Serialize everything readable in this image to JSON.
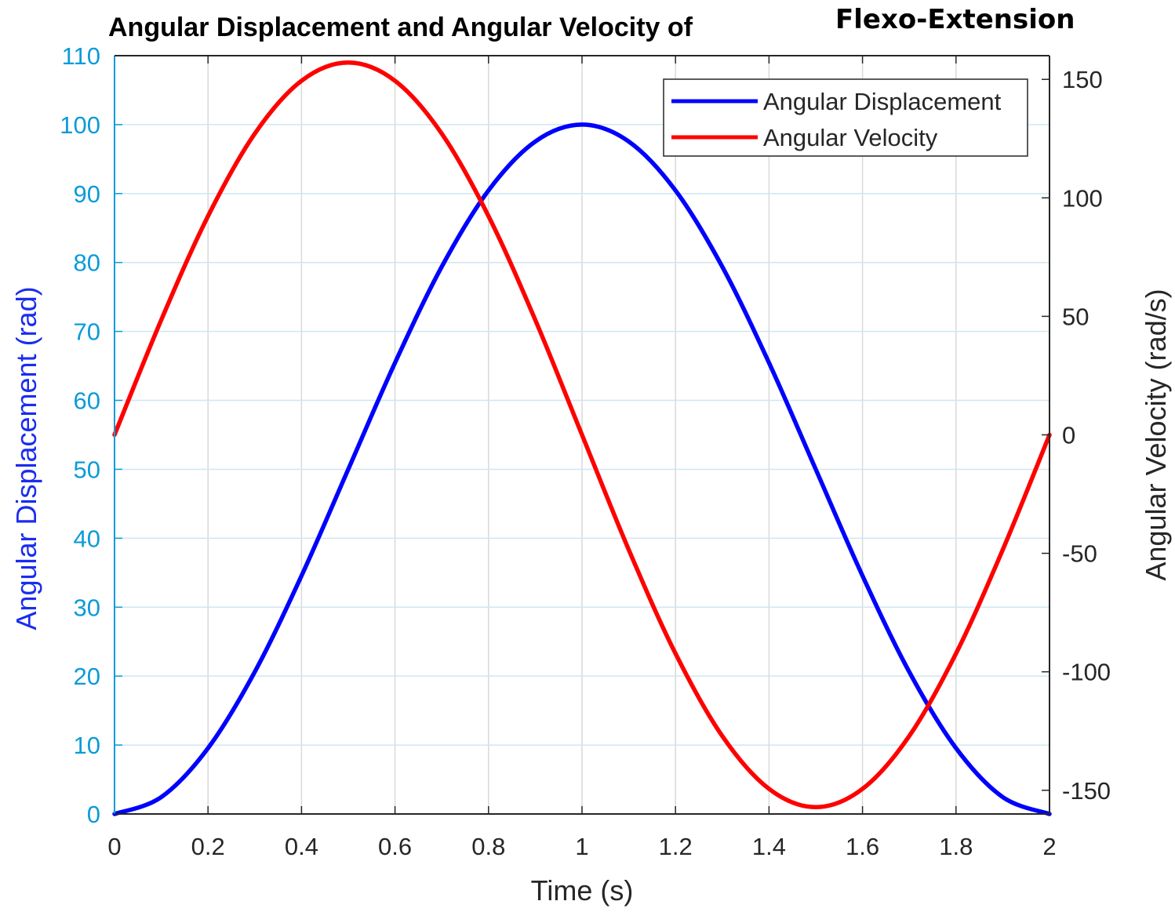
{
  "chart_data": {
    "type": "line",
    "title": "Angular Displacement and Angular Velocity of",
    "subtitle": "Flexo-Extension",
    "xlabel": "Time (s)",
    "ylabel_left": "Angular Displacement (rad)",
    "ylabel_right": "Angular Velocity (rad/s)",
    "xlim": [
      0,
      2
    ],
    "ylim_left": [
      0,
      110
    ],
    "ylim_right": [
      -160,
      160
    ],
    "x_ticks": [
      0,
      0.2,
      0.4,
      0.6,
      0.8,
      1,
      1.2,
      1.4,
      1.6,
      1.8,
      2
    ],
    "x_tick_labels": [
      "0",
      "0.2",
      "0.4",
      "0.6",
      "0.8",
      "1",
      "1.2",
      "1.4",
      "1.6",
      "1.8",
      "2"
    ],
    "y_left_ticks": [
      0,
      10,
      20,
      30,
      40,
      50,
      60,
      70,
      80,
      90,
      100,
      110
    ],
    "y_left_tick_labels": [
      "0",
      "10",
      "20",
      "30",
      "40",
      "50",
      "60",
      "70",
      "80",
      "90",
      "100",
      "110"
    ],
    "y_right_ticks": [
      -150,
      -100,
      -50,
      0,
      50,
      100,
      150
    ],
    "y_right_tick_labels": [
      "-150",
      "-100",
      "-50",
      "0",
      "50",
      "100",
      "150"
    ],
    "grid": true,
    "legend_position": "top-right",
    "series": [
      {
        "name": "Angular Displacement",
        "axis": "left",
        "color": "#0000ff",
        "x": [
          0,
          0.1,
          0.2,
          0.3,
          0.4,
          0.5,
          0.6,
          0.7,
          0.8,
          0.9,
          1.0,
          1.1,
          1.2,
          1.3,
          1.4,
          1.5,
          1.6,
          1.7,
          1.8,
          1.9,
          2.0
        ],
        "values": [
          0,
          2.45,
          9.55,
          20.61,
          34.55,
          50,
          65.45,
          79.39,
          90.45,
          97.55,
          100,
          97.55,
          90.45,
          79.39,
          65.45,
          50,
          34.55,
          20.61,
          9.55,
          2.45,
          0
        ]
      },
      {
        "name": "Angular Velocity",
        "axis": "right",
        "color": "#ff0000",
        "x": [
          0,
          0.1,
          0.2,
          0.3,
          0.4,
          0.5,
          0.6,
          0.7,
          0.8,
          0.9,
          1.0,
          1.1,
          1.2,
          1.3,
          1.4,
          1.5,
          1.6,
          1.7,
          1.8,
          1.9,
          2.0
        ],
        "values": [
          0,
          48.5,
          92.3,
          127.1,
          149.4,
          157.1,
          149.4,
          127.1,
          92.3,
          48.5,
          0,
          -48.5,
          -92.3,
          -127.1,
          -149.4,
          -157.1,
          -149.4,
          -127.1,
          -92.3,
          -48.5,
          0
        ]
      }
    ]
  },
  "colors": {
    "left_axis": "#0b9bd8",
    "right_axis": "#262626",
    "grid": "#d9d9d9",
    "left_label": "#1a2cf0"
  }
}
